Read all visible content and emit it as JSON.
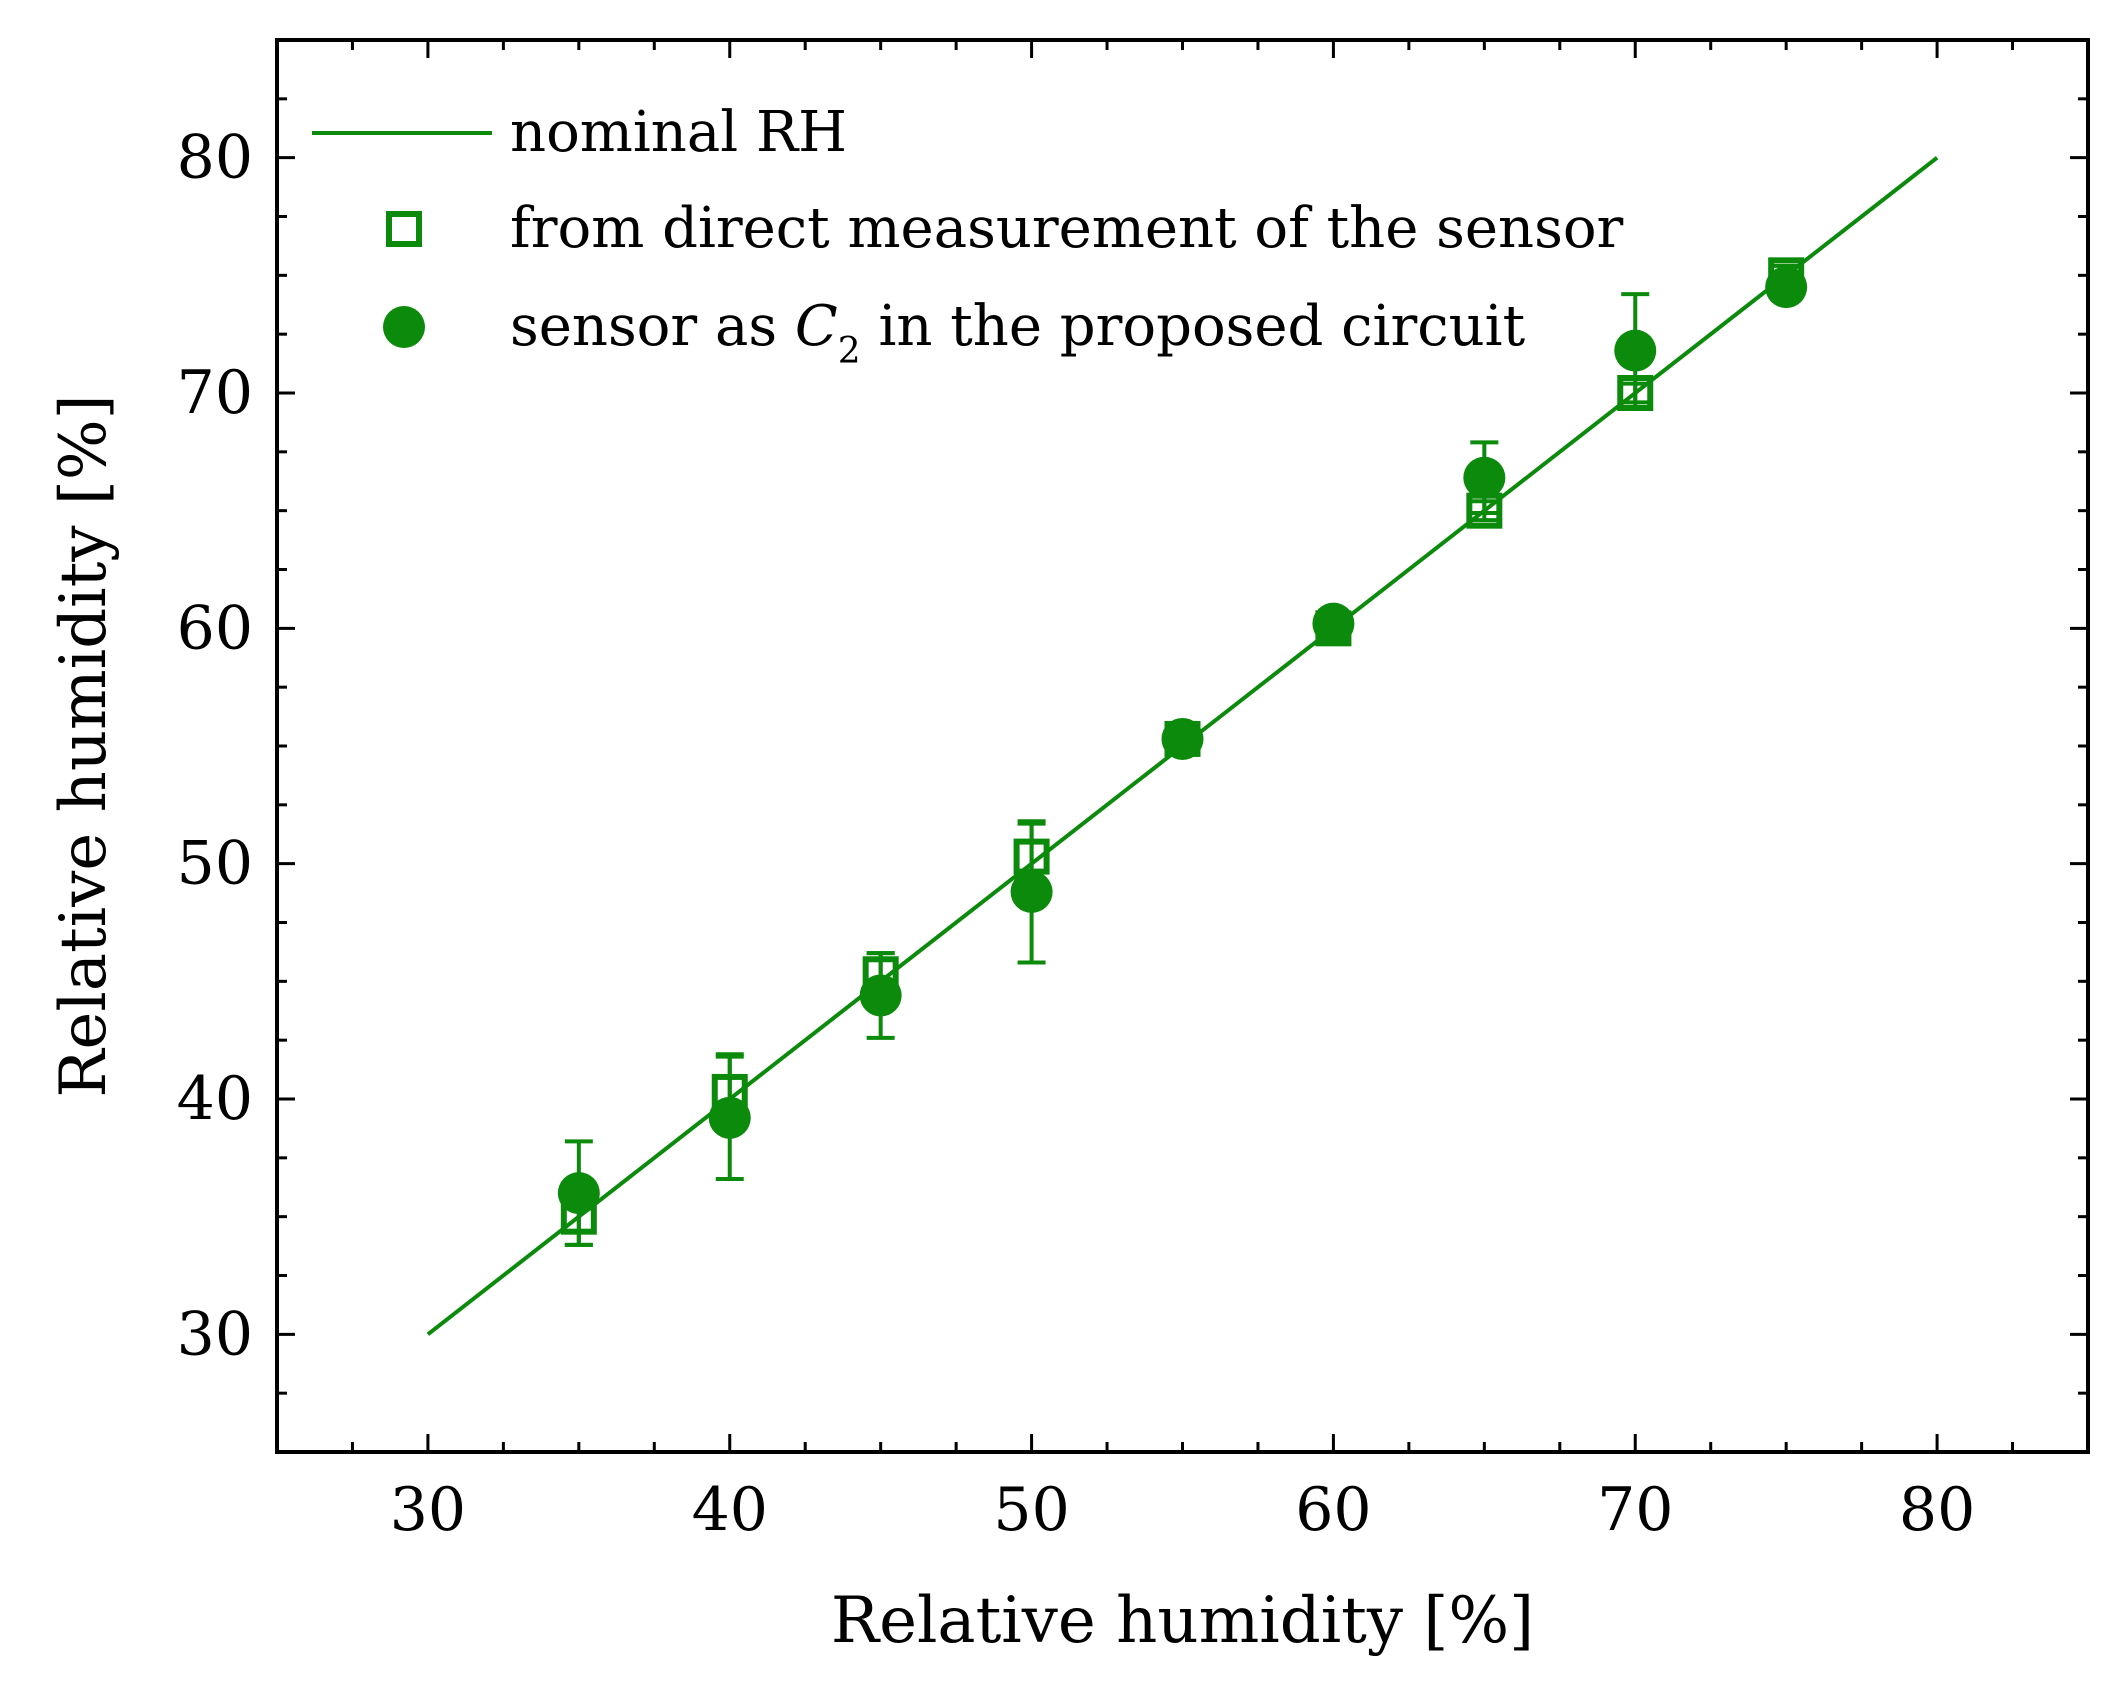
{
  "chart_data": {
    "type": "scatter",
    "xlabel": "Relative humidity [%]",
    "ylabel": "Relative humidity [%]",
    "xlim": [
      25,
      85
    ],
    "ylim": [
      25,
      85
    ],
    "xticks": [
      30,
      40,
      50,
      60,
      70,
      80
    ],
    "yticks": [
      30,
      40,
      50,
      60,
      70,
      80
    ],
    "xtick_labels": [
      "30",
      "40",
      "50",
      "60",
      "70",
      "80"
    ],
    "ytick_labels": [
      "30",
      "40",
      "50",
      "60",
      "70",
      "80"
    ],
    "minor_tick_step": 2.5,
    "legend_position": "top-left",
    "color": "#0b8a0b",
    "series": [
      {
        "name": "nominal RH",
        "kind": "line",
        "x": [
          30,
          80
        ],
        "y": [
          30,
          80
        ]
      },
      {
        "name": "from direct measurement of the sensor",
        "kind": "open-square",
        "x": [
          35,
          40,
          45,
          50,
          55,
          60,
          65,
          70,
          75
        ],
        "y": [
          35,
          40.3,
          45.3,
          50.3,
          55.3,
          60,
          65,
          70,
          75
        ],
        "err": [
          1.2,
          1.6,
          0.9,
          1.4,
          0.3,
          0.3,
          0.4,
          0.4,
          0.4
        ]
      },
      {
        "name_prefix": "sensor as ",
        "name_symbol": "C",
        "name_subscript": "2",
        "name_suffix": " in the proposed circuit",
        "kind": "filled-circle",
        "x": [
          35,
          40,
          45,
          50,
          55,
          60,
          65,
          70,
          75
        ],
        "y": [
          36,
          39.2,
          44.4,
          48.8,
          55.3,
          60.2,
          66.4,
          71.8,
          74.5
        ],
        "err": [
          2.2,
          2.6,
          1.8,
          3.0,
          0.3,
          0.4,
          1.5,
          2.4,
          0.3
        ]
      }
    ]
  }
}
